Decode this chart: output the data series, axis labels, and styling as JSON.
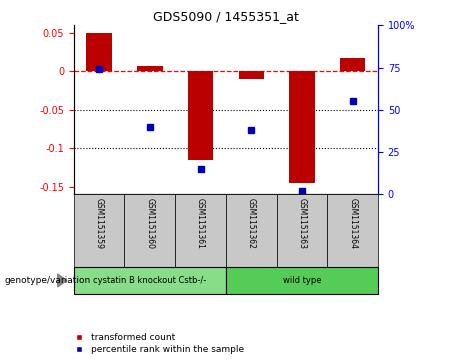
{
  "title": "GDS5090 / 1455351_at",
  "samples": [
    "GSM1151359",
    "GSM1151360",
    "GSM1151361",
    "GSM1151362",
    "GSM1151363",
    "GSM1151364"
  ],
  "red_values": [
    0.05,
    0.007,
    -0.115,
    -0.01,
    -0.145,
    0.018
  ],
  "blue_percentiles": [
    74,
    40,
    15,
    38,
    2,
    55
  ],
  "groups": [
    {
      "label": "cystatin B knockout Cstb-/-",
      "samples": [
        0,
        1,
        2
      ],
      "color": "#88DD88"
    },
    {
      "label": "wild type",
      "samples": [
        3,
        4,
        5
      ],
      "color": "#55CC55"
    }
  ],
  "ylim_left": [
    -0.16,
    0.06
  ],
  "ylim_right": [
    0,
    100
  ],
  "left_ticks": [
    0.05,
    0.0,
    -0.05,
    -0.1,
    -0.15
  ],
  "left_tick_labels": [
    "0.05",
    "0",
    "-0.05",
    "-0.1",
    "-0.15"
  ],
  "right_ticks": [
    100,
    75,
    50,
    25,
    0
  ],
  "right_tick_labels": [
    "100%",
    "75",
    "50",
    "25",
    "0"
  ],
  "bar_color": "#BB0000",
  "dot_color": "#0000BB",
  "legend_label_red": "transformed count",
  "legend_label_blue": "percentile rank within the sample",
  "genotype_label": "genotype/variation"
}
